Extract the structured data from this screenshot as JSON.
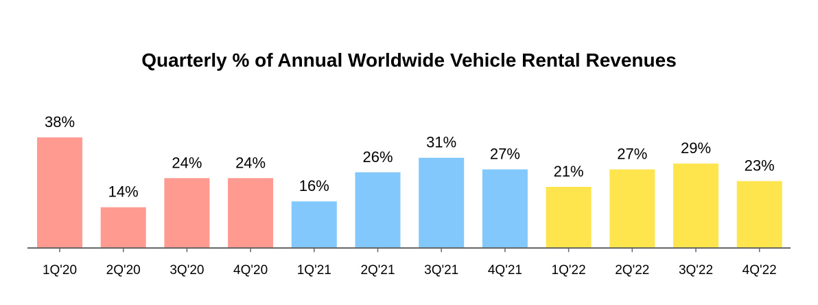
{
  "chart_data": {
    "type": "bar",
    "title": "Quarterly % of Annual Worldwide Vehicle Rental Revenues",
    "xlabel": "",
    "ylabel": "",
    "categories": [
      "1Q'20",
      "2Q'20",
      "3Q'20",
      "4Q'20",
      "1Q'21",
      "2Q'21",
      "3Q'21",
      "4Q'21",
      "1Q'22",
      "2Q'22",
      "3Q'22",
      "4Q'22"
    ],
    "values": [
      38,
      14,
      24,
      24,
      16,
      26,
      31,
      27,
      21,
      27,
      29,
      23
    ],
    "value_labels": [
      "38%",
      "14%",
      "24%",
      "24%",
      "16%",
      "26%",
      "31%",
      "27%",
      "21%",
      "27%",
      "29%",
      "23%"
    ],
    "bar_colors": [
      "#FF9A91",
      "#FF9A91",
      "#FF9A91",
      "#FF9A91",
      "#82C8FC",
      "#82C8FC",
      "#82C8FC",
      "#82C8FC",
      "#FFE54D",
      "#FFE54D",
      "#FFE54D",
      "#FFE54D"
    ],
    "ylim": [
      0,
      38
    ],
    "grid": false,
    "legend": "none"
  }
}
